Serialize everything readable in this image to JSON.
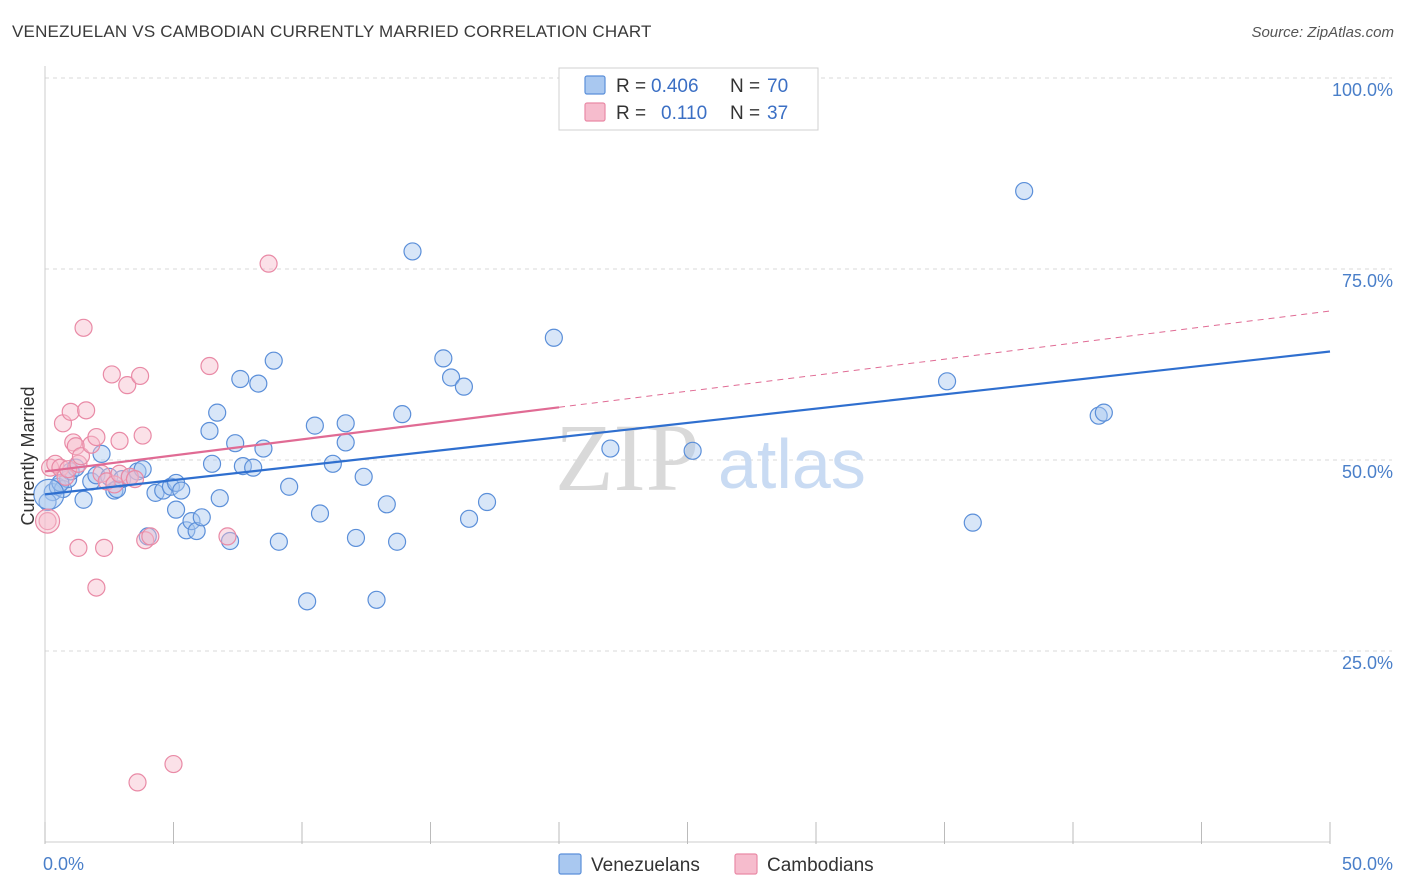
{
  "title": "VENEZUELAN VS CAMBODIAN CURRENTLY MARRIED CORRELATION CHART",
  "source": "Source: ZipAtlas.com",
  "colors": {
    "blue": "#5b8fd9",
    "blue_fill": "#a9c8f0",
    "blue_line": "#2f6fcf",
    "pink": "#e98aa6",
    "pink_fill": "#f6bccd",
    "pink_line": "#e06b94",
    "grid": "#d8d8d8",
    "tick_label": "#4a7fc9"
  },
  "legend": {
    "rows": [
      {
        "r_label": "R =",
        "r_value": "0.406",
        "n_label": "N =",
        "n_value": "70"
      },
      {
        "r_label": "R =",
        "r_value": "0.110",
        "n_label": "N =",
        "n_value": "37"
      }
    ]
  },
  "watermark": {
    "zip": "ZIP",
    "atlas": "atlas"
  },
  "chart_data": {
    "type": "scatter",
    "title": "VENEZUELAN VS CAMBODIAN CURRENTLY MARRIED CORRELATION CHART",
    "xlabel": "",
    "ylabel": "Currently Married",
    "xlim": [
      0,
      50
    ],
    "ylim": [
      0,
      100
    ],
    "x_tick_labels": [
      {
        "value": 0,
        "label": "0.0%"
      },
      {
        "value": 50,
        "label": "50.0%"
      }
    ],
    "y_tick_labels": [
      {
        "value": 100,
        "label": "100.0%"
      },
      {
        "value": 75,
        "label": "75.0%"
      },
      {
        "value": 50,
        "label": "50.0%"
      },
      {
        "value": 25,
        "label": "25.0%"
      }
    ],
    "grid": true,
    "series": [
      {
        "name": "Venezuelans",
        "r": 0.406,
        "n": 70,
        "trend": {
          "x0": 0,
          "y0": 45.5,
          "x1": 50,
          "y1": 64.2,
          "dashed_from": null
        },
        "points": [
          [
            0.3,
            45.8
          ],
          [
            0.5,
            46.5
          ],
          [
            0.7,
            46.2
          ],
          [
            0.9,
            47.5
          ],
          [
            1.0,
            48.5
          ],
          [
            1.2,
            49.0
          ],
          [
            1.5,
            44.8
          ],
          [
            1.8,
            47.2
          ],
          [
            2.0,
            48.0
          ],
          [
            2.2,
            50.8
          ],
          [
            2.5,
            47.8
          ],
          [
            2.7,
            46.0
          ],
          [
            2.8,
            46.2
          ],
          [
            3.0,
            47.5
          ],
          [
            3.3,
            47.8
          ],
          [
            3.6,
            48.5
          ],
          [
            3.8,
            48.8
          ],
          [
            4.0,
            40.0
          ],
          [
            4.3,
            45.7
          ],
          [
            4.6,
            46.0
          ],
          [
            4.9,
            46.5
          ],
          [
            5.1,
            47.0
          ],
          [
            5.1,
            43.5
          ],
          [
            5.3,
            46.0
          ],
          [
            5.5,
            40.8
          ],
          [
            5.7,
            42.0
          ],
          [
            5.9,
            40.7
          ],
          [
            6.1,
            42.5
          ],
          [
            6.4,
            53.8
          ],
          [
            6.5,
            49.5
          ],
          [
            6.7,
            56.2
          ],
          [
            6.8,
            45.0
          ],
          [
            7.2,
            39.4
          ],
          [
            7.4,
            52.2
          ],
          [
            7.6,
            60.6
          ],
          [
            7.7,
            49.2
          ],
          [
            8.1,
            49.0
          ],
          [
            8.3,
            60.0
          ],
          [
            8.5,
            51.5
          ],
          [
            8.9,
            63.0
          ],
          [
            9.1,
            39.3
          ],
          [
            9.5,
            46.5
          ],
          [
            10.2,
            31.5
          ],
          [
            10.5,
            54.5
          ],
          [
            10.7,
            43.0
          ],
          [
            11.2,
            49.5
          ],
          [
            11.7,
            54.8
          ],
          [
            11.7,
            52.3
          ],
          [
            12.1,
            39.8
          ],
          [
            12.4,
            47.8
          ],
          [
            12.9,
            31.7
          ],
          [
            13.3,
            44.2
          ],
          [
            13.7,
            39.3
          ],
          [
            13.9,
            56.0
          ],
          [
            14.3,
            77.3
          ],
          [
            15.5,
            63.3
          ],
          [
            15.8,
            60.8
          ],
          [
            16.3,
            59.6
          ],
          [
            16.5,
            42.3
          ],
          [
            17.2,
            44.5
          ],
          [
            19.8,
            66.0
          ],
          [
            22.0,
            51.5
          ],
          [
            25.2,
            51.2
          ],
          [
            35.1,
            60.3
          ],
          [
            36.1,
            41.8
          ],
          [
            38.1,
            85.2
          ],
          [
            41.0,
            55.8
          ],
          [
            41.2,
            56.2
          ],
          [
            0.1,
            44.5
          ],
          [
            0.6,
            47.0
          ]
        ]
      },
      {
        "name": "Cambodians",
        "r": 0.11,
        "n": 37,
        "trend": {
          "x0": 0,
          "y0": 48.5,
          "x1": 50,
          "y1": 69.5,
          "dashed_from": 20.0
        },
        "points": [
          [
            0.1,
            42.0
          ],
          [
            0.2,
            49.0
          ],
          [
            0.4,
            49.5
          ],
          [
            0.6,
            49.0
          ],
          [
            0.7,
            54.8
          ],
          [
            0.8,
            47.8
          ],
          [
            0.9,
            48.8
          ],
          [
            1.0,
            56.3
          ],
          [
            1.1,
            52.3
          ],
          [
            1.2,
            51.8
          ],
          [
            1.3,
            49.5
          ],
          [
            1.3,
            38.5
          ],
          [
            1.4,
            50.5
          ],
          [
            1.5,
            67.3
          ],
          [
            1.6,
            56.5
          ],
          [
            1.8,
            52.0
          ],
          [
            2.0,
            53.0
          ],
          [
            2.0,
            33.3
          ],
          [
            2.2,
            48.2
          ],
          [
            2.3,
            38.5
          ],
          [
            2.4,
            47.2
          ],
          [
            2.6,
            61.2
          ],
          [
            2.7,
            46.8
          ],
          [
            2.9,
            48.2
          ],
          [
            2.9,
            52.5
          ],
          [
            3.2,
            59.8
          ],
          [
            3.3,
            47.8
          ],
          [
            3.5,
            47.5
          ],
          [
            3.7,
            61.0
          ],
          [
            3.8,
            53.2
          ],
          [
            3.9,
            39.5
          ],
          [
            4.1,
            40.0
          ],
          [
            3.6,
            7.8
          ],
          [
            5.0,
            10.2
          ],
          [
            6.4,
            62.3
          ],
          [
            7.1,
            40.0
          ],
          [
            8.7,
            75.7
          ]
        ]
      }
    ]
  },
  "bottom_legend": [
    {
      "label": "Venezuelans"
    },
    {
      "label": "Cambodians"
    }
  ]
}
